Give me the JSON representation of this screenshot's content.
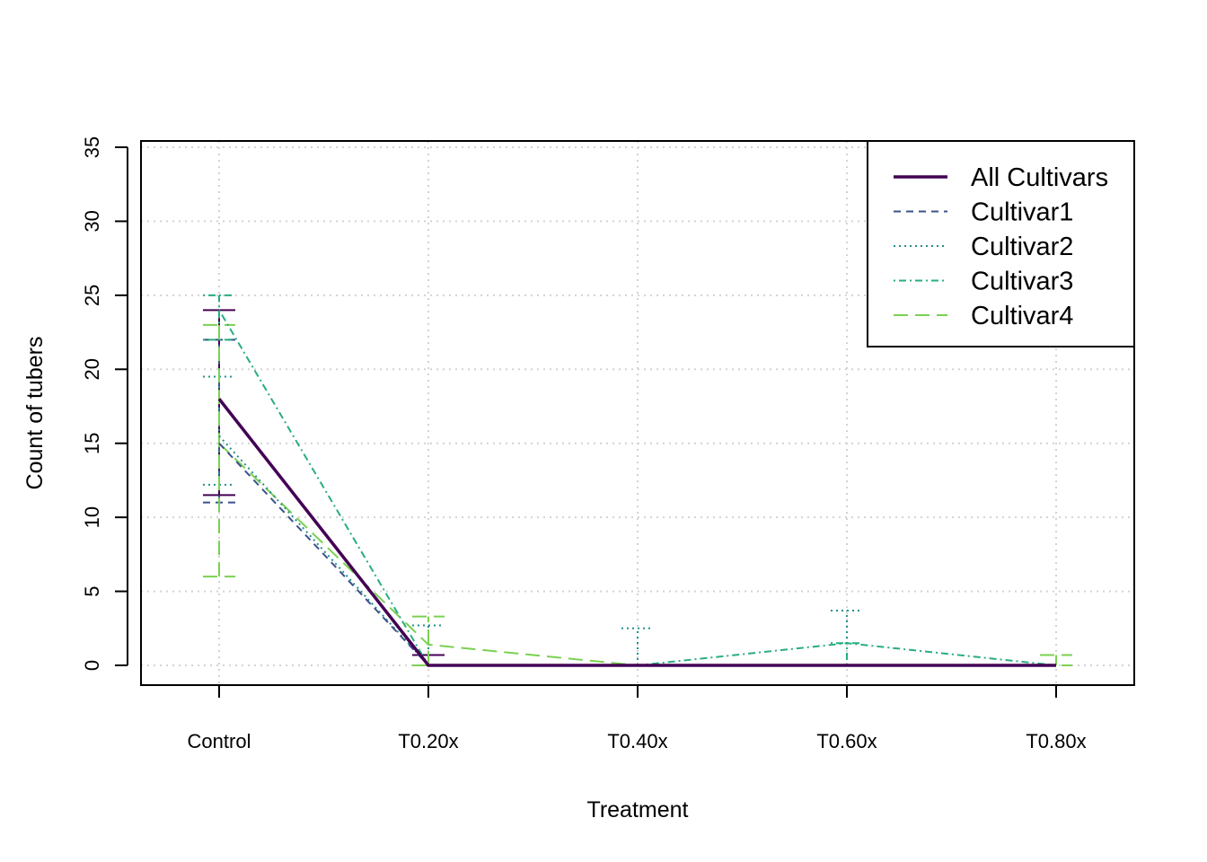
{
  "chart_data": {
    "type": "line",
    "title": "",
    "xlabel": "Treatment",
    "ylabel": "Count of tubers",
    "categories": [
      "Control",
      "T0.20x",
      "T0.40x",
      "T0.60x",
      "T0.80x"
    ],
    "ylim": [
      0,
      35
    ],
    "yticks": [
      0,
      5,
      10,
      15,
      20,
      25,
      30,
      35
    ],
    "grid": true,
    "legend_position": "top-right",
    "series": [
      {
        "name": "All Cultivars",
        "color": "#440154",
        "dash": "solid",
        "values": [
          18,
          0,
          0,
          0,
          0
        ],
        "error_low": [
          11.5,
          0,
          0,
          0,
          0
        ],
        "error_high": [
          24,
          0.7,
          0,
          0,
          0
        ]
      },
      {
        "name": "Cultivar1",
        "color": "#3B528B",
        "dash": "dashed",
        "values": [
          15,
          0,
          0,
          0,
          0
        ],
        "error_low": [
          11,
          0,
          0,
          0,
          0
        ],
        "error_high": [
          22,
          0,
          0,
          0,
          0
        ]
      },
      {
        "name": "Cultivar2",
        "color": "#21908C",
        "dash": "dotted",
        "values": [
          15.5,
          0,
          0,
          0,
          0
        ],
        "error_low": [
          12.2,
          0,
          0,
          0,
          0
        ],
        "error_high": [
          19.5,
          2.7,
          2.5,
          3.7,
          0
        ]
      },
      {
        "name": "Cultivar3",
        "color": "#27AD81",
        "dash": "dotdash",
        "values": [
          24,
          0,
          0,
          1.5,
          0
        ],
        "error_low": [
          22,
          0,
          0,
          0,
          0
        ],
        "error_high": [
          25,
          0,
          0,
          1.5,
          0
        ]
      },
      {
        "name": "Cultivar4",
        "color": "#7AD151",
        "dash": "longdash",
        "values": [
          15,
          1.4,
          0,
          0,
          0
        ],
        "error_low": [
          6,
          0,
          0,
          0,
          0
        ],
        "error_high": [
          23,
          3.3,
          0,
          0,
          0.7
        ]
      }
    ]
  }
}
